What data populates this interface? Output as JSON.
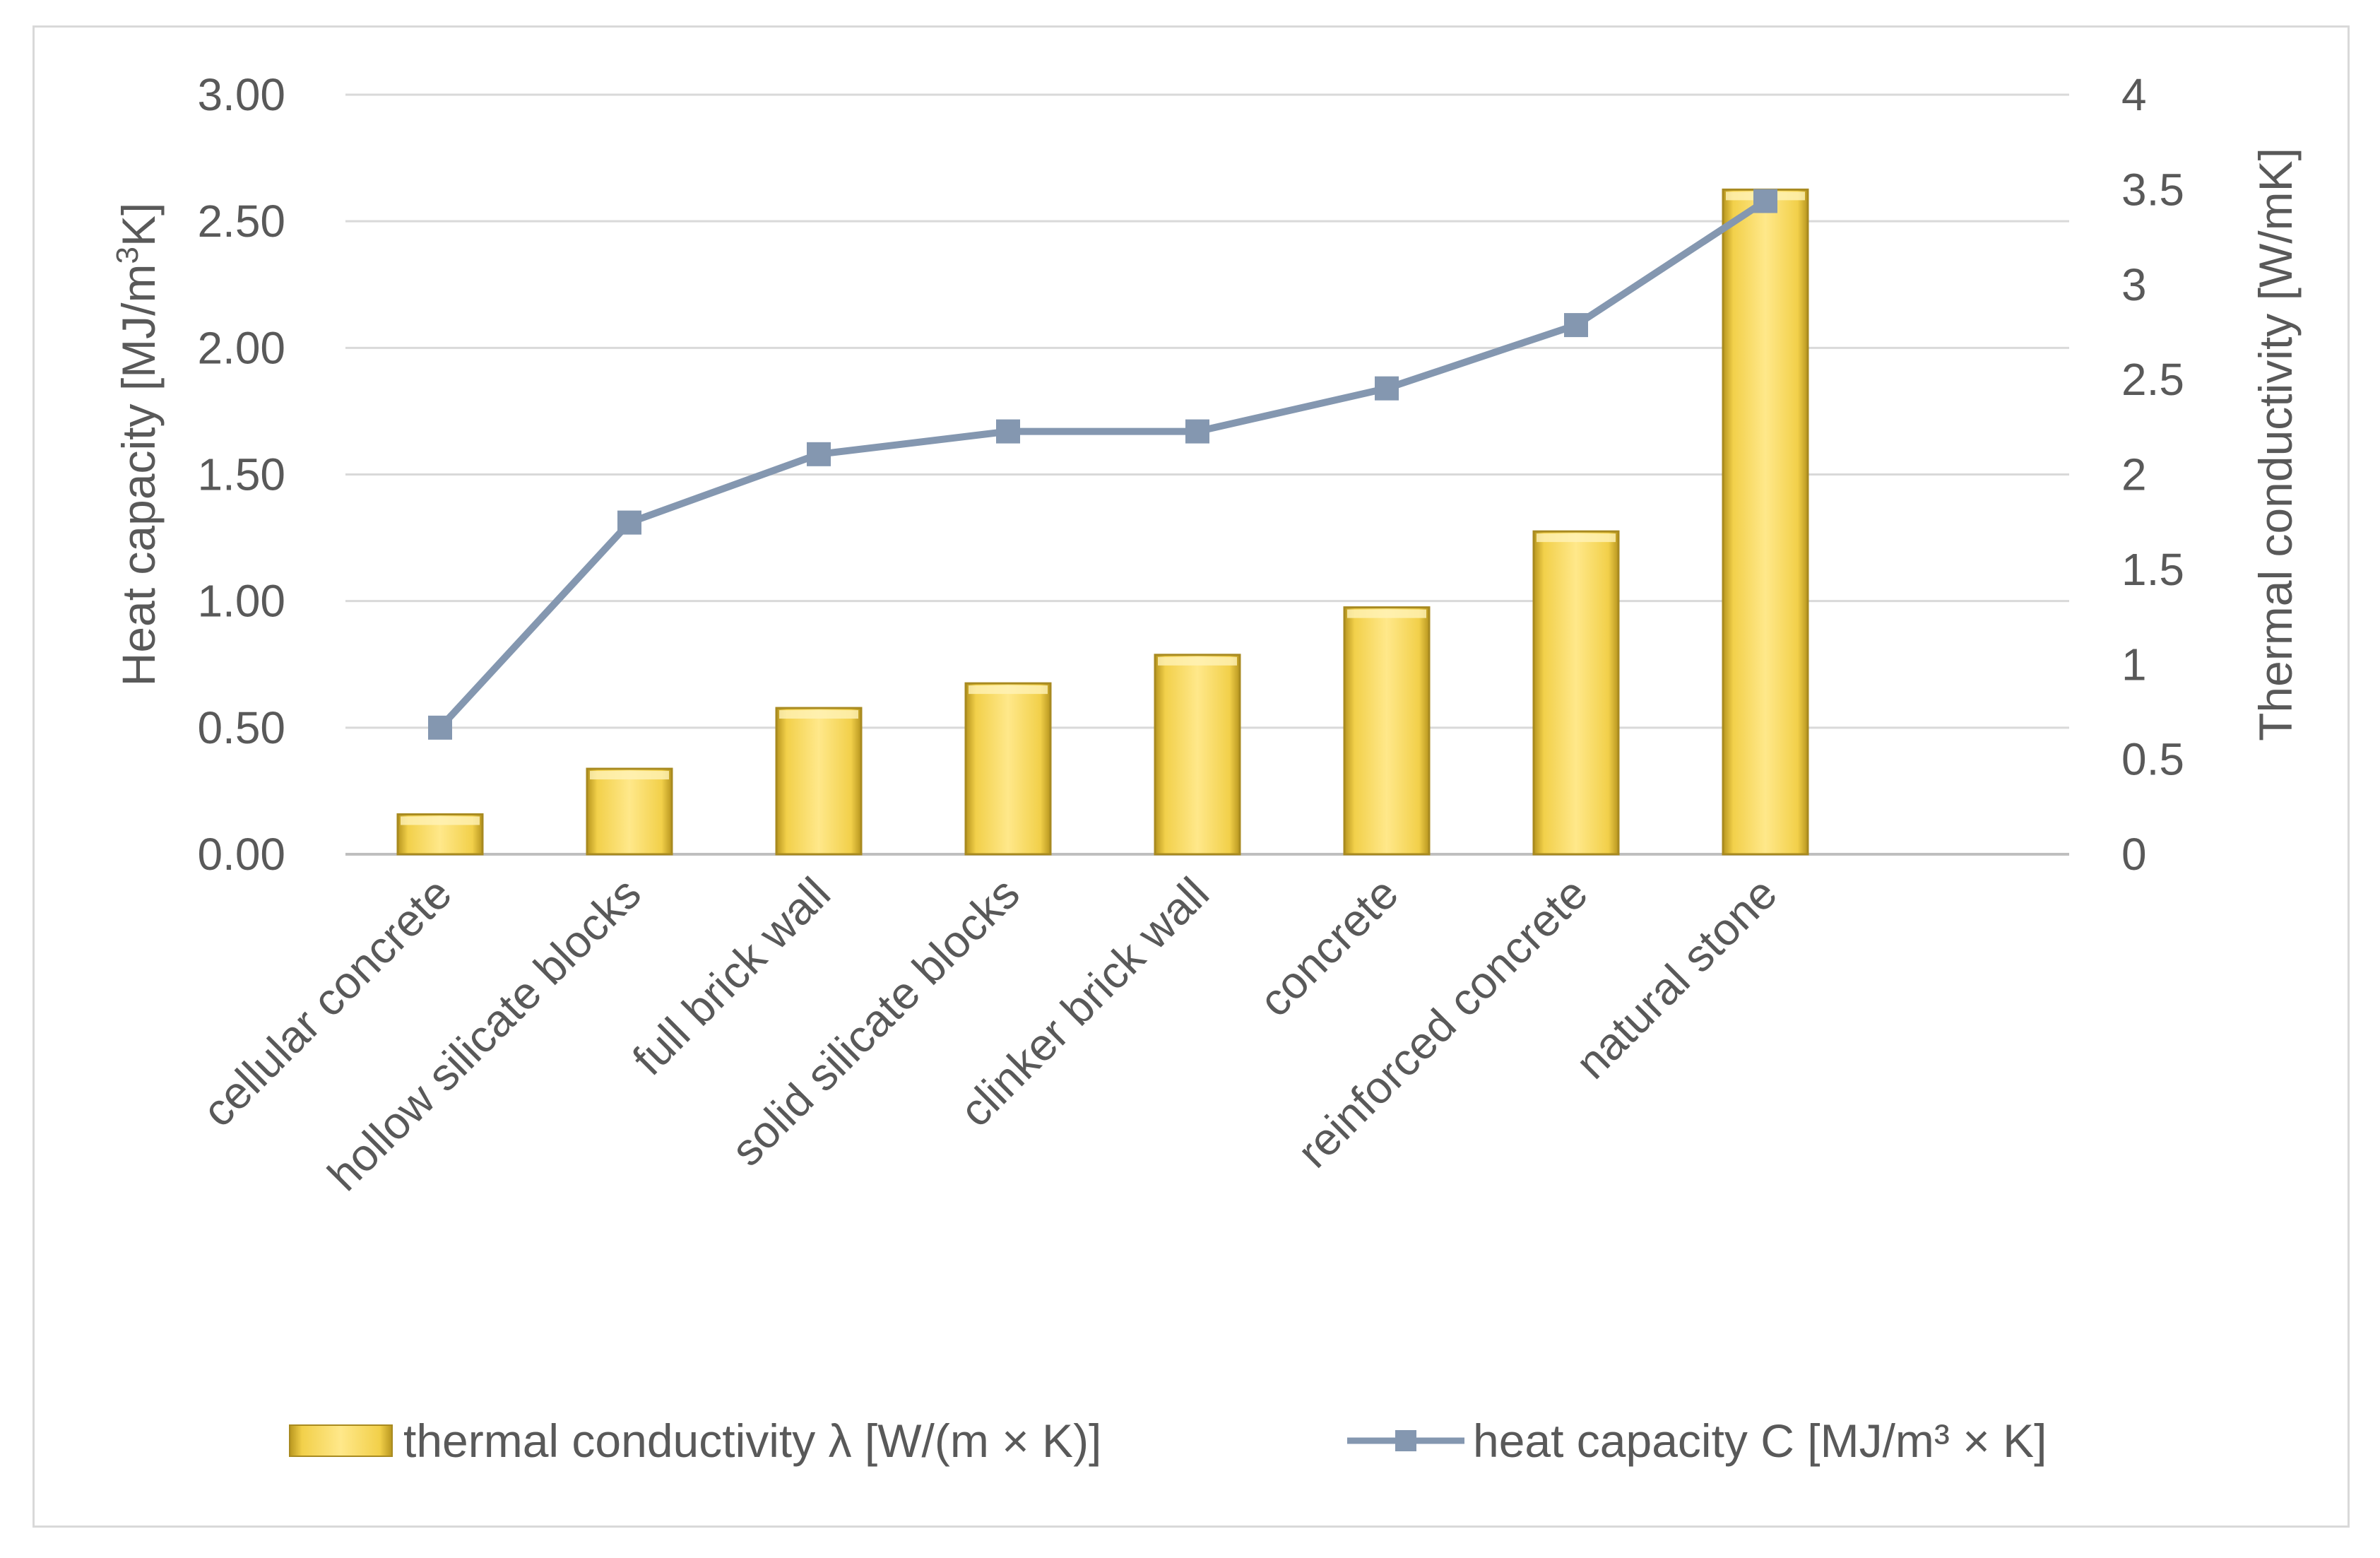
{
  "chart_data": {
    "type": "bar",
    "categories": [
      "cellular concrete",
      "hollow silicate blocks",
      "full brick wall",
      "solid silicate blocks",
      "clinker brick wall",
      "concrete",
      "reinforced concrete",
      "natural stone"
    ],
    "series": [
      {
        "name": "thermal conductivity λ [W/(m × K)]",
        "type": "bar",
        "axis": "right",
        "color": "#f5d44a",
        "values": [
          0.21,
          0.45,
          0.77,
          0.9,
          1.05,
          1.3,
          1.7,
          3.5
        ]
      },
      {
        "name": "heat capacity C [MJ/m³ × K]",
        "type": "line",
        "axis": "left",
        "color": "#8497b0",
        "values": [
          0.5,
          1.31,
          1.58,
          1.67,
          1.67,
          1.84,
          2.09,
          2.58
        ]
      }
    ],
    "y_left": {
      "label": "Heat capacity [MJ/m³K]",
      "label_main": "Heat capacity [MJ/m",
      "label_sup": "3",
      "label_end": "K]",
      "ylim": [
        0,
        3
      ],
      "ticks": [
        "0.00",
        "0.50",
        "1.00",
        "1.50",
        "2.00",
        "2.50",
        "3.00"
      ]
    },
    "y_right": {
      "label": "Thermal conductivity [W/mK]",
      "ylim": [
        0,
        4
      ],
      "ticks": [
        "0",
        "0.5",
        "1",
        "1.5",
        "2",
        "2.5",
        "3",
        "3.5",
        "4"
      ]
    },
    "grid": true,
    "legend": "bottom"
  }
}
